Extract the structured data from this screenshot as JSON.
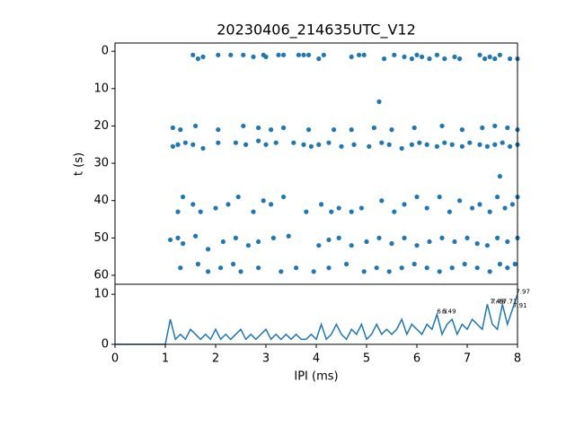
{
  "chart_data": [
    {
      "type": "scatter",
      "title": "20230406_214635UTC_V12",
      "ylabel": "t (s)",
      "color": "#1f77b4",
      "xlim": [
        0,
        8
      ],
      "ylim": [
        -2.2,
        62.4
      ],
      "y_inverted": true,
      "yticks": [
        0,
        10,
        20,
        30,
        40,
        50,
        60
      ],
      "x": [
        1.55,
        1.65,
        1.75,
        2.05,
        2.3,
        2.55,
        2.75,
        2.95,
        3.0,
        3.25,
        3.35,
        3.65,
        3.75,
        3.85,
        4.05,
        4.15,
        4.7,
        4.85,
        4.95,
        5.35,
        5.55,
        5.75,
        5.9,
        6.0,
        6.1,
        6.25,
        6.4,
        6.55,
        6.75,
        6.85,
        7.25,
        7.35,
        7.45,
        7.55,
        7.65,
        7.85,
        8.0,
        1.15,
        1.3,
        1.6,
        2.05,
        2.55,
        2.85,
        3.1,
        3.35,
        3.85,
        4.35,
        4.7,
        5.15,
        5.5,
        5.95,
        6.5,
        6.9,
        7.3,
        7.55,
        7.8,
        8.0,
        1.15,
        1.25,
        1.4,
        1.55,
        1.75,
        2.05,
        2.4,
        2.6,
        2.85,
        3.0,
        3.2,
        3.55,
        3.75,
        3.9,
        4.05,
        4.25,
        4.5,
        4.75,
        5.05,
        5.3,
        5.45,
        5.7,
        5.9,
        6.05,
        6.2,
        6.4,
        6.55,
        6.7,
        6.9,
        7.05,
        7.25,
        7.4,
        7.55,
        7.7,
        7.85,
        8.0,
        1.25,
        1.35,
        1.55,
        1.7,
        2.0,
        2.25,
        2.45,
        2.75,
        2.95,
        3.1,
        3.35,
        3.8,
        4.1,
        4.3,
        4.45,
        4.7,
        4.9,
        5.3,
        5.55,
        5.75,
        6.0,
        6.2,
        6.45,
        6.65,
        6.85,
        7.1,
        7.25,
        7.45,
        7.6,
        7.75,
        7.9,
        8.0,
        1.1,
        1.25,
        1.35,
        1.6,
        1.85,
        2.15,
        2.4,
        2.65,
        2.85,
        3.15,
        3.45,
        4.05,
        4.25,
        4.45,
        4.7,
        5.0,
        5.25,
        5.5,
        5.75,
        6.0,
        6.25,
        6.5,
        6.75,
        7.0,
        7.2,
        7.4,
        7.6,
        7.8,
        8.0,
        1.3,
        1.65,
        1.85,
        2.1,
        2.35,
        2.5,
        2.85,
        3.3,
        3.6,
        3.95,
        4.25,
        4.6,
        4.95,
        5.2,
        5.45,
        5.7,
        5.95,
        6.2,
        6.45,
        6.7,
        6.95,
        7.2,
        7.45,
        7.65,
        7.8,
        7.95,
        5.25,
        7.65
      ],
      "y": [
        1,
        2,
        1.5,
        1,
        1,
        1,
        1.5,
        1,
        1.5,
        1,
        1,
        1,
        1,
        1,
        2,
        1,
        1.5,
        1,
        1,
        2,
        1,
        1.5,
        2,
        1,
        1.5,
        2,
        1,
        2,
        1.5,
        2,
        1,
        2,
        1.5,
        2,
        1,
        2,
        2,
        20.5,
        21,
        20,
        21,
        20,
        20.5,
        21,
        20.5,
        21,
        21,
        21,
        20.5,
        21,
        20.5,
        20,
        21,
        20.5,
        20,
        20.5,
        21,
        25.5,
        25,
        24.5,
        25,
        26,
        24.5,
        24.5,
        25,
        24,
        25,
        24.5,
        24.5,
        25,
        25.5,
        25,
        24.5,
        25.5,
        25,
        25.5,
        24.5,
        25,
        26,
        25,
        24.5,
        25,
        25.5,
        24.5,
        25,
        25.5,
        24.5,
        25,
        25.5,
        25,
        24.5,
        25.5,
        25,
        43,
        39,
        41,
        43,
        42,
        41,
        39,
        43,
        40,
        41,
        39,
        43,
        41,
        43,
        42,
        43,
        42,
        40,
        43,
        41,
        39,
        42,
        39,
        43,
        40,
        42,
        41,
        43,
        39,
        42,
        41,
        39,
        50.5,
        50,
        51.5,
        49.5,
        53,
        51,
        50,
        52,
        51,
        50,
        49.5,
        52,
        50.5,
        50,
        52,
        51,
        50,
        51.5,
        50,
        52,
        51,
        50,
        51,
        50,
        51.5,
        52,
        50,
        51,
        50,
        58,
        57,
        59,
        58,
        57,
        59,
        58,
        59,
        58,
        59,
        58,
        57,
        59,
        58,
        59,
        58,
        57,
        58,
        59,
        58,
        57,
        58,
        59,
        57,
        58,
        57,
        13.5,
        33.5
      ]
    },
    {
      "type": "line",
      "xlabel": "IPI (ms)",
      "color": "#1f77b4",
      "xlim": [
        0,
        8
      ],
      "ylim": [
        0,
        12
      ],
      "xticks": [
        0,
        1,
        2,
        3,
        4,
        5,
        6,
        7,
        8
      ],
      "yticks": [
        0,
        10
      ],
      "x": [
        0,
        0.1,
        0.2,
        0.3,
        0.4,
        0.5,
        0.6,
        0.7,
        0.8,
        0.9,
        1.0,
        1.1,
        1.2,
        1.3,
        1.4,
        1.5,
        1.6,
        1.7,
        1.8,
        1.9,
        2.0,
        2.1,
        2.2,
        2.3,
        2.4,
        2.5,
        2.6,
        2.7,
        2.8,
        2.9,
        3.0,
        3.1,
        3.2,
        3.3,
        3.4,
        3.5,
        3.6,
        3.7,
        3.8,
        3.9,
        4.0,
        4.1,
        4.2,
        4.3,
        4.4,
        4.5,
        4.6,
        4.7,
        4.8,
        4.9,
        5.0,
        5.1,
        5.2,
        5.3,
        5.4,
        5.5,
        5.6,
        5.7,
        5.8,
        5.9,
        6.0,
        6.1,
        6.2,
        6.3,
        6.4,
        6.5,
        6.6,
        6.7,
        6.8,
        6.9,
        7.0,
        7.1,
        7.2,
        7.3,
        7.4,
        7.5,
        7.6,
        7.7,
        7.8,
        7.9,
        8.0
      ],
      "values": [
        0,
        0,
        0,
        0,
        0,
        0,
        0,
        0,
        0,
        0,
        0,
        5,
        1,
        2,
        1,
        3,
        2,
        1,
        2,
        1,
        3,
        1,
        2,
        1,
        2,
        3,
        1,
        2,
        1,
        2,
        3,
        1,
        2,
        1,
        2,
        1,
        2,
        1,
        1,
        2,
        1,
        4,
        1,
        2,
        4,
        2,
        1,
        3,
        2,
        4,
        1,
        2,
        4,
        2,
        3,
        2,
        3,
        5,
        2,
        4,
        3,
        2,
        4,
        3,
        6,
        2,
        4,
        5,
        2,
        4,
        3,
        5,
        4,
        3,
        8,
        4,
        3,
        8,
        4,
        7,
        10
      ],
      "annotations": [
        {
          "text": "6.3",
          "x": 6.4,
          "y": 6.5
        },
        {
          "text": "6.49",
          "x": 6.5,
          "y": 6.5
        },
        {
          "text": "7.45",
          "x": 7.45,
          "y": 8.5
        },
        {
          "text": "7.48",
          "x": 7.48,
          "y": 8.5
        },
        {
          "text": "7.71",
          "x": 7.71,
          "y": 8.5
        },
        {
          "text": "7.97",
          "x": 7.97,
          "y": 10.5
        },
        {
          "text": "7.91",
          "x": 7.91,
          "y": 7.7
        }
      ]
    }
  ]
}
